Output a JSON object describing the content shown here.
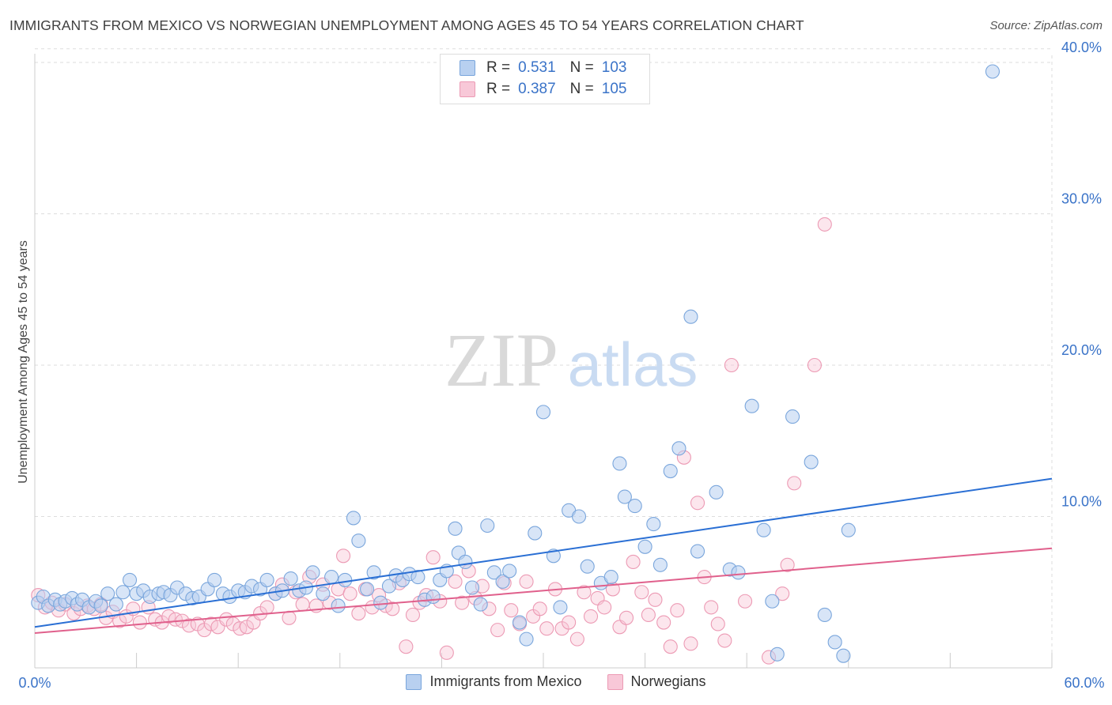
{
  "header": {
    "title": "IMMIGRANTS FROM MEXICO VS NORWEGIAN UNEMPLOYMENT AMONG AGES 45 TO 54 YEARS CORRELATION CHART",
    "source": "Source: ZipAtlas.com"
  },
  "watermark": {
    "zip": "ZIP",
    "atlas": "atlas"
  },
  "legend": {
    "rows": [
      {
        "r_label": "R =",
        "r_value": "0.531",
        "n_label": "N =",
        "n_value": "103"
      },
      {
        "r_label": "R =",
        "r_value": "0.387",
        "n_label": "N =",
        "n_value": "105"
      }
    ]
  },
  "colors": {
    "mexico_fill": "#b8d0f0",
    "mexico_stroke": "#7aa6dc",
    "mexico_line": "#2a6fd4",
    "norway_fill": "#f8c8d8",
    "norway_stroke": "#ec9ab4",
    "norway_line": "#e0608c",
    "axis_label": "#3a73c8",
    "grid": "#dddddd"
  },
  "chart_data": {
    "type": "scatter",
    "title": "IMMIGRANTS FROM MEXICO VS NORWEGIAN UNEMPLOYMENT AMONG AGES 45 TO 54 YEARS CORRELATION CHART",
    "xlabel": "",
    "ylabel": "Unemployment Among Ages 45 to 54 years",
    "xlim": [
      0,
      60
    ],
    "ylim": [
      0,
      41
    ],
    "x_tick_labels": [
      "0.0%",
      "60.0%"
    ],
    "y_ticks": [
      10,
      20,
      30,
      40
    ],
    "y_tick_labels": [
      "10.0%",
      "20.0%",
      "30.0%",
      "40.0%"
    ],
    "grid": true,
    "legend_position": "top-center",
    "series": [
      {
        "name": "Immigrants from Mexico",
        "R": 0.531,
        "N": 103,
        "trend": {
          "x": [
            0,
            60
          ],
          "y": [
            2.7,
            12.5
          ]
        },
        "points": [
          [
            0.2,
            4.3
          ],
          [
            0.5,
            4.7
          ],
          [
            0.8,
            4.1
          ],
          [
            1.2,
            4.5
          ],
          [
            1.5,
            4.2
          ],
          [
            1.8,
            4.4
          ],
          [
            2.2,
            4.6
          ],
          [
            2.5,
            4.2
          ],
          [
            2.8,
            4.5
          ],
          [
            3.2,
            4.0
          ],
          [
            3.6,
            4.4
          ],
          [
            3.9,
            4.1
          ],
          [
            4.3,
            4.9
          ],
          [
            4.8,
            4.2
          ],
          [
            5.2,
            5.0
          ],
          [
            5.6,
            5.8
          ],
          [
            6.0,
            4.9
          ],
          [
            6.4,
            5.1
          ],
          [
            6.8,
            4.7
          ],
          [
            7.3,
            4.9
          ],
          [
            7.6,
            5.0
          ],
          [
            8.0,
            4.8
          ],
          [
            8.4,
            5.3
          ],
          [
            8.9,
            4.9
          ],
          [
            9.3,
            4.6
          ],
          [
            9.7,
            4.7
          ],
          [
            10.2,
            5.2
          ],
          [
            10.6,
            5.8
          ],
          [
            11.1,
            4.9
          ],
          [
            11.5,
            4.7
          ],
          [
            12.0,
            5.1
          ],
          [
            12.4,
            5.0
          ],
          [
            12.8,
            5.4
          ],
          [
            13.3,
            5.2
          ],
          [
            13.7,
            5.8
          ],
          [
            14.2,
            4.9
          ],
          [
            14.6,
            5.1
          ],
          [
            15.1,
            5.9
          ],
          [
            15.6,
            5.1
          ],
          [
            16.0,
            5.3
          ],
          [
            16.4,
            6.3
          ],
          [
            17.0,
            4.9
          ],
          [
            17.5,
            6.0
          ],
          [
            17.9,
            4.1
          ],
          [
            18.3,
            5.8
          ],
          [
            18.8,
            9.9
          ],
          [
            19.1,
            8.4
          ],
          [
            19.6,
            5.2
          ],
          [
            20.0,
            6.3
          ],
          [
            20.4,
            4.3
          ],
          [
            20.9,
            5.4
          ],
          [
            21.3,
            6.1
          ],
          [
            21.7,
            5.8
          ],
          [
            22.1,
            6.2
          ],
          [
            22.6,
            6.0
          ],
          [
            23.0,
            4.5
          ],
          [
            23.5,
            4.7
          ],
          [
            23.9,
            5.8
          ],
          [
            24.3,
            6.4
          ],
          [
            24.8,
            9.2
          ],
          [
            25.0,
            7.6
          ],
          [
            25.4,
            7.0
          ],
          [
            25.8,
            5.3
          ],
          [
            26.3,
            4.2
          ],
          [
            26.7,
            9.4
          ],
          [
            27.1,
            6.3
          ],
          [
            27.6,
            5.7
          ],
          [
            28.0,
            6.4
          ],
          [
            28.6,
            3.0
          ],
          [
            29.0,
            1.9
          ],
          [
            29.5,
            8.9
          ],
          [
            30.0,
            16.9
          ],
          [
            30.6,
            7.4
          ],
          [
            31.0,
            4.0
          ],
          [
            31.5,
            10.4
          ],
          [
            32.1,
            10.0
          ],
          [
            32.6,
            6.7
          ],
          [
            33.4,
            5.6
          ],
          [
            34.0,
            6.0
          ],
          [
            34.5,
            13.5
          ],
          [
            34.8,
            11.3
          ],
          [
            35.4,
            10.7
          ],
          [
            36.0,
            8.0
          ],
          [
            36.5,
            9.5
          ],
          [
            36.9,
            6.8
          ],
          [
            37.5,
            13.0
          ],
          [
            38.0,
            14.5
          ],
          [
            38.7,
            23.2
          ],
          [
            39.1,
            7.7
          ],
          [
            40.2,
            11.6
          ],
          [
            41.0,
            6.5
          ],
          [
            41.5,
            6.3
          ],
          [
            42.3,
            17.3
          ],
          [
            43.0,
            9.1
          ],
          [
            43.5,
            4.4
          ],
          [
            43.8,
            0.9
          ],
          [
            44.7,
            16.6
          ],
          [
            45.8,
            13.6
          ],
          [
            46.6,
            3.5
          ],
          [
            47.2,
            1.7
          ],
          [
            47.7,
            0.8
          ],
          [
            48.0,
            9.1
          ],
          [
            56.5,
            39.4
          ]
        ]
      },
      {
        "name": "Norwegians",
        "R": 0.387,
        "N": 105,
        "trend": {
          "x": [
            0,
            60
          ],
          "y": [
            2.3,
            7.9
          ]
        },
        "points": [
          [
            0.2,
            4.8
          ],
          [
            0.6,
            4.0
          ],
          [
            1.0,
            4.3
          ],
          [
            1.4,
            3.8
          ],
          [
            1.8,
            4.2
          ],
          [
            2.3,
            3.6
          ],
          [
            2.7,
            3.9
          ],
          [
            3.1,
            4.1
          ],
          [
            3.5,
            3.9
          ],
          [
            3.9,
            4.2
          ],
          [
            4.2,
            3.3
          ],
          [
            4.6,
            3.7
          ],
          [
            5.0,
            3.1
          ],
          [
            5.4,
            3.4
          ],
          [
            5.8,
            3.9
          ],
          [
            6.2,
            3.0
          ],
          [
            6.7,
            4.0
          ],
          [
            7.1,
            3.2
          ],
          [
            7.5,
            3.0
          ],
          [
            7.9,
            3.4
          ],
          [
            8.3,
            3.2
          ],
          [
            8.7,
            3.1
          ],
          [
            9.1,
            2.8
          ],
          [
            9.6,
            2.9
          ],
          [
            10.0,
            2.5
          ],
          [
            10.4,
            2.9
          ],
          [
            10.8,
            2.7
          ],
          [
            11.3,
            3.2
          ],
          [
            11.7,
            2.9
          ],
          [
            12.1,
            2.6
          ],
          [
            12.5,
            2.7
          ],
          [
            12.9,
            3.0
          ],
          [
            13.3,
            3.6
          ],
          [
            13.7,
            4.0
          ],
          [
            14.2,
            4.9
          ],
          [
            14.6,
            5.5
          ],
          [
            15.0,
            3.3
          ],
          [
            15.4,
            5.0
          ],
          [
            15.8,
            4.2
          ],
          [
            16.2,
            6.0
          ],
          [
            16.6,
            4.1
          ],
          [
            17.0,
            5.5
          ],
          [
            17.4,
            4.3
          ],
          [
            17.9,
            5.2
          ],
          [
            18.2,
            7.4
          ],
          [
            18.6,
            4.9
          ],
          [
            19.1,
            3.6
          ],
          [
            19.5,
            5.2
          ],
          [
            19.9,
            4.0
          ],
          [
            20.3,
            4.8
          ],
          [
            20.7,
            4.1
          ],
          [
            21.1,
            3.9
          ],
          [
            21.5,
            5.6
          ],
          [
            21.9,
            1.4
          ],
          [
            22.3,
            3.5
          ],
          [
            22.7,
            4.3
          ],
          [
            23.1,
            4.8
          ],
          [
            23.5,
            7.3
          ],
          [
            23.9,
            4.4
          ],
          [
            24.3,
            1.0
          ],
          [
            24.8,
            5.7
          ],
          [
            25.2,
            4.3
          ],
          [
            25.6,
            6.4
          ],
          [
            26.0,
            4.6
          ],
          [
            26.4,
            5.4
          ],
          [
            26.8,
            3.9
          ],
          [
            27.3,
            2.5
          ],
          [
            27.7,
            5.6
          ],
          [
            28.1,
            3.8
          ],
          [
            28.6,
            2.9
          ],
          [
            29.0,
            5.7
          ],
          [
            29.4,
            3.4
          ],
          [
            29.8,
            3.9
          ],
          [
            30.2,
            2.6
          ],
          [
            30.7,
            5.2
          ],
          [
            31.1,
            2.6
          ],
          [
            31.5,
            3.0
          ],
          [
            32.0,
            1.9
          ],
          [
            32.4,
            5.0
          ],
          [
            32.8,
            3.4
          ],
          [
            33.2,
            4.6
          ],
          [
            33.6,
            4.0
          ],
          [
            34.1,
            5.2
          ],
          [
            34.5,
            2.7
          ],
          [
            34.9,
            3.3
          ],
          [
            35.3,
            7.0
          ],
          [
            35.8,
            5.0
          ],
          [
            36.2,
            3.5
          ],
          [
            36.6,
            4.5
          ],
          [
            37.1,
            3.0
          ],
          [
            37.5,
            1.4
          ],
          [
            37.9,
            3.8
          ],
          [
            38.3,
            13.9
          ],
          [
            38.7,
            1.6
          ],
          [
            39.1,
            10.9
          ],
          [
            39.5,
            6.0
          ],
          [
            39.9,
            4.0
          ],
          [
            40.3,
            2.9
          ],
          [
            40.7,
            1.8
          ],
          [
            41.1,
            20.0
          ],
          [
            41.9,
            4.4
          ],
          [
            43.3,
            0.7
          ],
          [
            44.1,
            4.9
          ],
          [
            44.4,
            6.8
          ],
          [
            44.8,
            12.2
          ],
          [
            46.0,
            20.0
          ],
          [
            46.6,
            29.3
          ]
        ]
      }
    ]
  },
  "bottom_legend": {
    "items": [
      "Immigrants from Mexico",
      "Norwegians"
    ]
  }
}
